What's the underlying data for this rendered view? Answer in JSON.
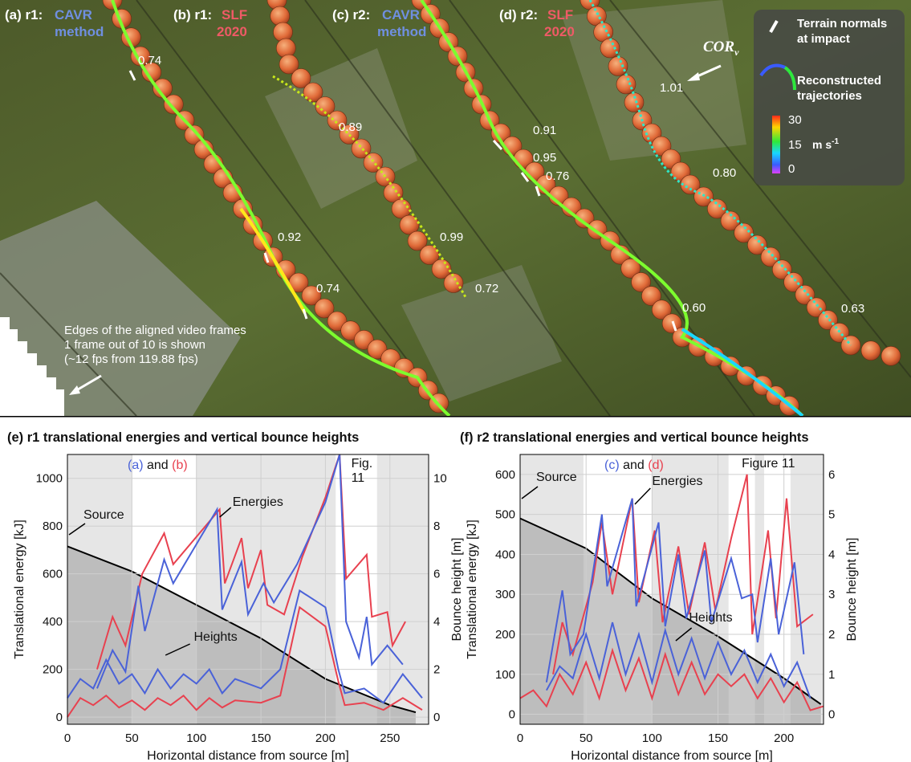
{
  "photo": {
    "panel_labels": [
      {
        "id": "a",
        "prefix": "(a) r1:",
        "name": "CAVR",
        "name2": "method",
        "color": "#6f8fe0"
      },
      {
        "id": "b",
        "prefix": "(b) r1:",
        "name": "SLF",
        "name2": "2020",
        "color": "#ef5a66"
      },
      {
        "id": "c",
        "prefix": "(c) r2:",
        "name": "CAVR",
        "name2": "method",
        "color": "#6f8fe0"
      },
      {
        "id": "d",
        "prefix": "(d) r2:",
        "name": "SLF",
        "name2": "2020",
        "color": "#ef5a66"
      }
    ],
    "cor_values": [
      "0.74",
      "0.89",
      "0.92",
      "0.74",
      "0.99",
      "0.72",
      "0.91",
      "0.95",
      "0.76",
      "0.60",
      "1.01",
      "0.80",
      "0.63"
    ],
    "cor_label": "COR",
    "cor_sub": "v",
    "edge_note": [
      "Edges of the aligned video frames",
      "1 frame out of 10 is shown",
      "(~12 fps from 119.88 fps)"
    ],
    "legend": {
      "normals": [
        "Terrain normals",
        "at impact"
      ],
      "trajectories": [
        "Reconstructed",
        "trajectories"
      ],
      "ticks": [
        "30",
        "15",
        "0"
      ],
      "unit": "m s",
      "unit_exp": "-1",
      "colors": [
        "#ff2a1a",
        "#ffd400",
        "#2ee83a",
        "#18d7ff",
        "#3a5bff",
        "#e040ff"
      ]
    }
  },
  "chart_data": [
    {
      "type": "line",
      "title": "(e) r1 translational energies and vertical bounce heights",
      "xlabel": "Horizontal distance from source [m]",
      "ylabel": "Translational energy [kJ]",
      "y2label": "Bounce height [m]",
      "xlim": [
        0,
        280
      ],
      "ylim": [
        -30,
        1100
      ],
      "y2lim": [
        -0.3,
        11
      ],
      "xticks": [
        "0",
        "50",
        "100",
        "150",
        "200",
        "250"
      ],
      "yticks": [
        "0",
        "200",
        "400",
        "600",
        "800",
        "1000"
      ],
      "y2ticks": [
        "0",
        "2",
        "4",
        "6",
        "8",
        "10"
      ],
      "legend_text": {
        "l": "(a)",
        "mid": " and ",
        "r": "(b)"
      },
      "annotations": {
        "source": "Source",
        "energies": "Energies",
        "heights": "Heights",
        "fig": [
          "Fig.",
          "11"
        ]
      },
      "series": [
        {
          "color": "#e8414f",
          "values": [
            [
              23,
              200
            ],
            [
              35,
              420
            ],
            [
              45,
              300
            ],
            [
              58,
              600
            ],
            [
              75,
              770
            ],
            [
              82,
              640
            ],
            [
              118,
              870
            ],
            [
              122,
              560
            ],
            [
              135,
              750
            ],
            [
              140,
              540
            ],
            [
              150,
              700
            ],
            [
              155,
              470
            ],
            [
              168,
              430
            ],
            [
              182,
              670
            ],
            [
              200,
              920
            ],
            [
              211,
              1100
            ],
            [
              216,
              580
            ],
            [
              232,
              680
            ],
            [
              236,
              420
            ],
            [
              248,
              440
            ],
            [
              252,
              300
            ],
            [
              262,
              400
            ]
          ]
        },
        {
          "color": "#4a62d8",
          "values": [
            [
              23,
              120
            ],
            [
              35,
              280
            ],
            [
              45,
              190
            ],
            [
              55,
              550
            ],
            [
              60,
              360
            ],
            [
              75,
              660
            ],
            [
              82,
              560
            ],
            [
              116,
              870
            ],
            [
              120,
              450
            ],
            [
              135,
              650
            ],
            [
              140,
              430
            ],
            [
              152,
              560
            ],
            [
              160,
              480
            ],
            [
              178,
              640
            ],
            [
              200,
              900
            ],
            [
              211,
              1100
            ],
            [
              216,
              400
            ],
            [
              226,
              250
            ],
            [
              232,
              420
            ],
            [
              236,
              220
            ],
            [
              248,
              300
            ],
            [
              260,
              220
            ]
          ]
        }
      ],
      "heights": [
        {
          "color": "#e8414f",
          "values": [
            [
              0,
              0
            ],
            [
              10,
              0.8
            ],
            [
              20,
              0.5
            ],
            [
              30,
              0.9
            ],
            [
              40,
              0.4
            ],
            [
              50,
              0.7
            ],
            [
              60,
              0.3
            ],
            [
              70,
              0.8
            ],
            [
              80,
              0.5
            ],
            [
              90,
              0.9
            ],
            [
              100,
              0.3
            ],
            [
              110,
              0.8
            ],
            [
              120,
              0.4
            ],
            [
              130,
              0.7
            ],
            [
              150,
              0.6
            ],
            [
              165,
              0.9
            ],
            [
              180,
              4.6
            ],
            [
              200,
              3.8
            ],
            [
              210,
              1.5
            ],
            [
              215,
              0.5
            ],
            [
              230,
              0.6
            ],
            [
              245,
              0.3
            ],
            [
              260,
              0.8
            ],
            [
              275,
              0.3
            ]
          ]
        },
        {
          "color": "#4a62d8",
          "values": [
            [
              0,
              0.8
            ],
            [
              10,
              1.6
            ],
            [
              20,
              1.2
            ],
            [
              30,
              2.4
            ],
            [
              40,
              1.4
            ],
            [
              50,
              1.8
            ],
            [
              60,
              1.0
            ],
            [
              70,
              2.0
            ],
            [
              80,
              1.2
            ],
            [
              90,
              1.8
            ],
            [
              100,
              1.4
            ],
            [
              110,
              2.0
            ],
            [
              120,
              1.0
            ],
            [
              130,
              1.6
            ],
            [
              150,
              1.2
            ],
            [
              165,
              2.0
            ],
            [
              180,
              5.3
            ],
            [
              200,
              4.6
            ],
            [
              210,
              2.0
            ],
            [
              215,
              1.0
            ],
            [
              230,
              1.2
            ],
            [
              245,
              0.6
            ],
            [
              260,
              1.8
            ],
            [
              275,
              0.8
            ]
          ]
        }
      ],
      "terrain": [
        [
          0,
          715
        ],
        [
          50,
          610
        ],
        [
          100,
          470
        ],
        [
          150,
          330
        ],
        [
          200,
          160
        ],
        [
          250,
          50
        ],
        [
          270,
          20
        ]
      ]
    },
    {
      "type": "line",
      "title": "(f) r2 translational energies and vertical bounce heights",
      "xlabel": "Horizontal distance from source [m]",
      "ylabel": "Translational energy [kJ]",
      "y2label": "Bounce height [m]",
      "xlim": [
        0,
        230
      ],
      "ylim": [
        -25,
        650
      ],
      "y2lim": [
        -0.25,
        6.5
      ],
      "xticks": [
        "0",
        "50",
        "100",
        "150",
        "200"
      ],
      "yticks": [
        "0",
        "100",
        "200",
        "300",
        "400",
        "500",
        "600"
      ],
      "y2ticks": [
        "0",
        "1",
        "2",
        "3",
        "4",
        "5",
        "6"
      ],
      "legend_text": {
        "l": "(c)",
        "mid": " and ",
        "r": "(d)"
      },
      "annotations": {
        "source": "Source",
        "energies": "Energies",
        "heights": "Heights",
        "fig": [
          "Figure 11"
        ]
      },
      "series": [
        {
          "color": "#e8414f",
          "values": [
            [
              25,
              100
            ],
            [
              32,
              230
            ],
            [
              40,
              150
            ],
            [
              55,
              330
            ],
            [
              62,
              480
            ],
            [
              70,
              300
            ],
            [
              85,
              540
            ],
            [
              90,
              280
            ],
            [
              102,
              460
            ],
            [
              108,
              230
            ],
            [
              120,
              420
            ],
            [
              128,
              250
            ],
            [
              140,
              430
            ],
            [
              148,
              260
            ],
            [
              160,
              440
            ],
            [
              172,
              600
            ],
            [
              176,
              200
            ],
            [
              188,
              460
            ],
            [
              194,
              240
            ],
            [
              202,
              540
            ],
            [
              210,
              220
            ],
            [
              222,
              250
            ]
          ]
        },
        {
          "color": "#4a62d8",
          "values": [
            [
              20,
              80
            ],
            [
              32,
              310
            ],
            [
              38,
              150
            ],
            [
              48,
              200
            ],
            [
              62,
              500
            ],
            [
              66,
              320
            ],
            [
              85,
              540
            ],
            [
              88,
              270
            ],
            [
              105,
              480
            ],
            [
              110,
              220
            ],
            [
              120,
              400
            ],
            [
              126,
              240
            ],
            [
              140,
              410
            ],
            [
              145,
              230
            ],
            [
              160,
              390
            ],
            [
              168,
              290
            ],
            [
              176,
              300
            ],
            [
              180,
              180
            ],
            [
              190,
              390
            ],
            [
              196,
              200
            ],
            [
              208,
              380
            ],
            [
              215,
              150
            ]
          ]
        }
      ],
      "heights": [
        {
          "color": "#e8414f",
          "values": [
            [
              0,
              0.4
            ],
            [
              10,
              0.6
            ],
            [
              20,
              0.2
            ],
            [
              30,
              1.0
            ],
            [
              40,
              0.5
            ],
            [
              50,
              1.3
            ],
            [
              60,
              0.4
            ],
            [
              70,
              1.6
            ],
            [
              80,
              0.6
            ],
            [
              90,
              1.4
            ],
            [
              100,
              0.4
            ],
            [
              110,
              1.5
            ],
            [
              120,
              0.5
            ],
            [
              130,
              1.3
            ],
            [
              140,
              0.5
            ],
            [
              150,
              1.0
            ],
            [
              160,
              0.7
            ],
            [
              170,
              1.0
            ],
            [
              180,
              0.4
            ],
            [
              190,
              0.9
            ],
            [
              200,
              0.3
            ],
            [
              210,
              0.8
            ],
            [
              220,
              0.1
            ],
            [
              230,
              0.2
            ]
          ]
        },
        {
          "color": "#4a62d8",
          "values": [
            [
              20,
              0.6
            ],
            [
              30,
              1.2
            ],
            [
              40,
              0.9
            ],
            [
              50,
              2.0
            ],
            [
              60,
              0.9
            ],
            [
              70,
              2.3
            ],
            [
              80,
              1.0
            ],
            [
              90,
              2.0
            ],
            [
              100,
              0.8
            ],
            [
              110,
              2.1
            ],
            [
              120,
              1.0
            ],
            [
              130,
              1.9
            ],
            [
              140,
              0.9
            ],
            [
              150,
              1.8
            ],
            [
              160,
              1.0
            ],
            [
              170,
              1.6
            ],
            [
              180,
              0.8
            ],
            [
              190,
              1.5
            ],
            [
              200,
              0.7
            ],
            [
              210,
              1.3
            ],
            [
              220,
              0.4
            ]
          ]
        }
      ],
      "terrain": [
        [
          0,
          490
        ],
        [
          50,
          415
        ],
        [
          100,
          290
        ],
        [
          150,
          195
        ],
        [
          200,
          90
        ],
        [
          228,
          25
        ]
      ]
    }
  ]
}
